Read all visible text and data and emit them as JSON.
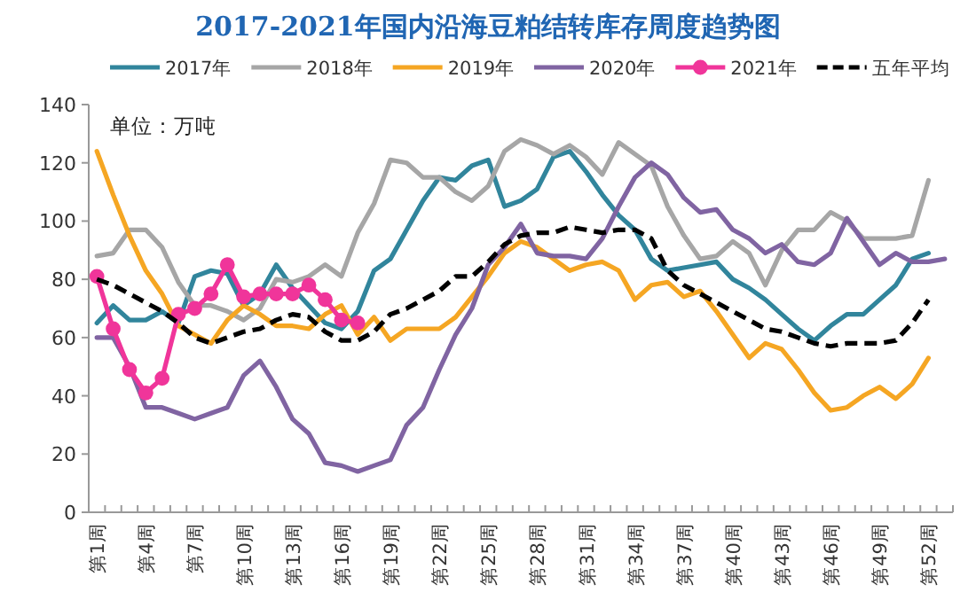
{
  "chart_data": {
    "type": "line",
    "title": "2017-2021年国内沿海豆粕结转库存周度趋势图",
    "annotations": [
      "单位：万吨"
    ],
    "categories": [
      "第1周",
      null,
      null,
      "第4周",
      null,
      null,
      "第7周",
      null,
      null,
      "第10周",
      null,
      null,
      "第13周",
      null,
      null,
      "第16周",
      null,
      null,
      "第19周",
      null,
      null,
      "第22周",
      null,
      null,
      "第25周",
      null,
      null,
      "第28周",
      null,
      null,
      "第31周",
      null,
      null,
      "第34周",
      null,
      null,
      "第37周",
      null,
      null,
      "第40周",
      null,
      null,
      "第43周",
      null,
      null,
      "第46周",
      null,
      null,
      "第49周",
      null,
      null,
      "第52周",
      null
    ],
    "ylim": [
      0,
      140
    ],
    "yticks": [
      0,
      20,
      40,
      60,
      80,
      100,
      120,
      140
    ],
    "legend": "top",
    "marker": "none",
    "line_style": "solid",
    "series": [
      {
        "name": "2017年",
        "color": "#31859c",
        "values": [
          65,
          71,
          66,
          66,
          69,
          65,
          81,
          83,
          82,
          71,
          75,
          85,
          77,
          71,
          65,
          63,
          69,
          83,
          87,
          97,
          107,
          115,
          114,
          119,
          121,
          105,
          107,
          111,
          122,
          124,
          117,
          109,
          102,
          97,
          87,
          83,
          84,
          85,
          86,
          80,
          77,
          73,
          68,
          63,
          59,
          64,
          68,
          68,
          73,
          78,
          87,
          89,
          null
        ]
      },
      {
        "name": "2018年",
        "color": "#a6a6a6",
        "values": [
          88,
          89,
          97,
          97,
          91,
          79,
          71,
          71,
          69,
          66,
          70,
          80,
          79,
          81,
          85,
          81,
          96,
          106,
          121,
          120,
          115,
          115,
          110,
          107,
          112,
          124,
          128,
          126,
          123,
          126,
          122,
          116,
          127,
          123,
          119,
          105,
          95,
          87,
          88,
          93,
          89,
          78,
          90,
          97,
          97,
          103,
          100,
          94,
          94,
          94,
          95,
          114,
          null
        ]
      },
      {
        "name": "2019年",
        "color": "#f5a623",
        "values": [
          124,
          109,
          95,
          83,
          75,
          64,
          61,
          58,
          66,
          71,
          68,
          64,
          64,
          63,
          68,
          71,
          61,
          67,
          59,
          63,
          63,
          63,
          67,
          74,
          81,
          89,
          93,
          91,
          87,
          83,
          85,
          86,
          83,
          73,
          78,
          79,
          74,
          76,
          69,
          61,
          53,
          58,
          56,
          49,
          41,
          35,
          36,
          40,
          43,
          39,
          44,
          53,
          null
        ]
      },
      {
        "name": "2020年",
        "color": "#8064a2",
        "values": [
          60,
          60,
          50,
          36,
          36,
          34,
          32,
          34,
          36,
          47,
          52,
          43,
          32,
          27,
          17,
          16,
          14,
          16,
          18,
          30,
          36,
          49,
          61,
          70,
          85,
          91,
          99,
          89,
          88,
          88,
          87,
          94,
          105,
          115,
          120,
          116,
          108,
          103,
          104,
          97,
          94,
          89,
          92,
          86,
          85,
          89,
          101,
          93,
          85,
          89,
          86,
          86,
          87
        ]
      },
      {
        "name": "2021年",
        "color": "#f0359a",
        "marker": "circle",
        "values": [
          81,
          63,
          49,
          41,
          46,
          68,
          70,
          75,
          85,
          74,
          75,
          75,
          75,
          78,
          73,
          66,
          65,
          null,
          null,
          null,
          null,
          null,
          null,
          null,
          null,
          null,
          null,
          null,
          null,
          null,
          null,
          null,
          null,
          null,
          null,
          null,
          null,
          null,
          null,
          null,
          null,
          null,
          null,
          null,
          null,
          null,
          null,
          null,
          null,
          null,
          null,
          null,
          null
        ]
      },
      {
        "name": "五年平均",
        "color": "#000000",
        "line_style": "dashed",
        "values": [
          80,
          78,
          75,
          72,
          69,
          65,
          60,
          58,
          60,
          62,
          63,
          66,
          68,
          67,
          62,
          59,
          59,
          62,
          68,
          70,
          73,
          76,
          81,
          81,
          86,
          92,
          95,
          96,
          96,
          98,
          97,
          96,
          97,
          97,
          94,
          83,
          78,
          75,
          72,
          69,
          66,
          63,
          62,
          60,
          58,
          57,
          58,
          58,
          58,
          59,
          65,
          73,
          null
        ]
      }
    ]
  }
}
